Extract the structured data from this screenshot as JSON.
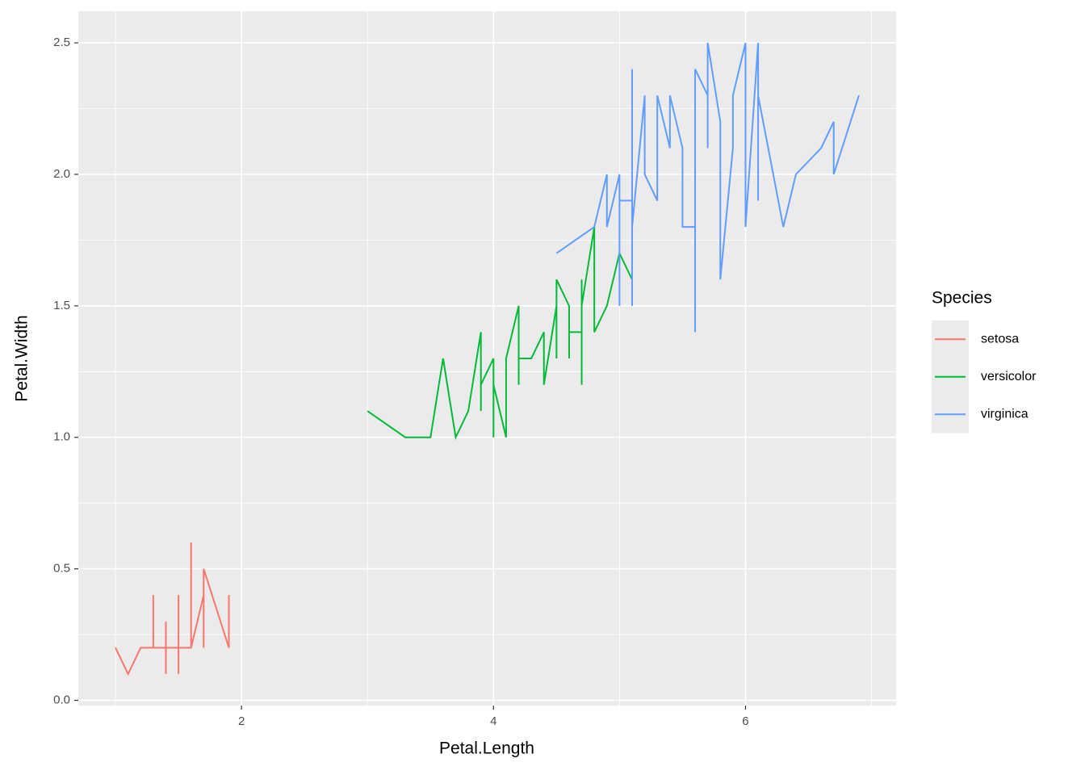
{
  "chart_data": {
    "type": "line",
    "x_label": "Petal.Length",
    "y_label": "Petal.Width",
    "legend_title": "Species",
    "xlim": [
      0.705,
      7.195
    ],
    "xticks": [
      2,
      4,
      6
    ],
    "ylim": [
      -0.02,
      2.62
    ],
    "yticks": [
      {
        "value": 0,
        "label": "0.0"
      },
      0.5,
      {
        "value": 1,
        "label": "1.0"
      },
      1.5,
      {
        "value": 2,
        "label": "2.0"
      },
      2.5
    ],
    "grid": true,
    "legend_position": "right",
    "series": [
      {
        "name": "setosa",
        "color": "#F8766D",
        "x": [
          1.0,
          1.1,
          1.2,
          1.3,
          1.3,
          1.3,
          1.3,
          1.3,
          1.4,
          1.4,
          1.4,
          1.4,
          1.4,
          1.4,
          1.4,
          1.4,
          1.4,
          1.5,
          1.5,
          1.5,
          1.5,
          1.5,
          1.5,
          1.5,
          1.5,
          1.5,
          1.5,
          1.6,
          1.6,
          1.6,
          1.6,
          1.6,
          1.7,
          1.7,
          1.7,
          1.7,
          1.9,
          1.9
        ],
        "values": [
          0.2,
          0.1,
          0.2,
          0.2,
          0.4,
          0.2,
          0.3,
          0.2,
          0.2,
          0.3,
          0.2,
          0.1,
          0.3,
          0.2,
          0.1,
          0.3,
          0.2,
          0.2,
          0.1,
          0.2,
          0.4,
          0.3,
          0.4,
          0.2,
          0.4,
          0.1,
          0.2,
          0.2,
          0.4,
          0.2,
          0.6,
          0.2,
          0.4,
          0.3,
          0.2,
          0.5,
          0.2,
          0.4
        ]
      },
      {
        "name": "versicolor",
        "color": "#00BA38",
        "x": [
          3.0,
          3.3,
          3.5,
          3.6,
          3.7,
          3.8,
          3.9,
          3.9,
          3.9,
          4.0,
          4.0,
          4.0,
          4.0,
          4.1,
          4.1,
          4.2,
          4.2,
          4.2,
          4.2,
          4.3,
          4.4,
          4.4,
          4.4,
          4.5,
          4.5,
          4.5,
          4.5,
          4.6,
          4.6,
          4.6,
          4.7,
          4.7,
          4.7,
          4.7,
          4.7,
          4.8,
          4.8,
          4.9,
          5.0,
          5.1
        ],
        "values": [
          1.1,
          1.0,
          1.0,
          1.3,
          1.0,
          1.1,
          1.4,
          1.1,
          1.2,
          1.3,
          1.0,
          1.3,
          1.2,
          1.0,
          1.3,
          1.5,
          1.3,
          1.2,
          1.3,
          1.3,
          1.4,
          1.3,
          1.2,
          1.5,
          1.3,
          1.5,
          1.6,
          1.5,
          1.3,
          1.4,
          1.4,
          1.6,
          1.4,
          1.2,
          1.5,
          1.8,
          1.4,
          1.5,
          1.7,
          1.6
        ]
      },
      {
        "name": "virginica",
        "color": "#619CFF",
        "x": [
          4.5,
          4.8,
          4.9,
          4.9,
          5.0,
          5.0,
          5.0,
          5.1,
          5.1,
          5.1,
          5.1,
          5.1,
          5.1,
          5.1,
          5.2,
          5.2,
          5.3,
          5.3,
          5.4,
          5.4,
          5.5,
          5.5,
          5.6,
          5.6,
          5.6,
          5.6,
          5.6,
          5.7,
          5.7,
          5.7,
          5.8,
          5.8,
          5.8,
          5.9,
          5.9,
          6.0,
          6.0,
          6.1,
          6.1,
          6.1,
          6.3,
          6.4,
          6.6,
          6.7,
          6.7,
          6.9
        ],
        "values": [
          1.7,
          1.8,
          2.0,
          1.8,
          2.0,
          1.5,
          1.9,
          1.9,
          2.0,
          2.4,
          1.5,
          2.3,
          1.9,
          1.8,
          2.3,
          2.0,
          1.9,
          2.3,
          2.1,
          2.3,
          2.1,
          1.8,
          1.8,
          2.1,
          2.2,
          1.4,
          2.4,
          2.3,
          2.1,
          2.5,
          2.2,
          1.8,
          1.6,
          2.1,
          2.3,
          2.5,
          1.8,
          2.5,
          1.9,
          2.3,
          1.8,
          2.0,
          2.1,
          2.2,
          2.0,
          2.3
        ]
      }
    ]
  }
}
